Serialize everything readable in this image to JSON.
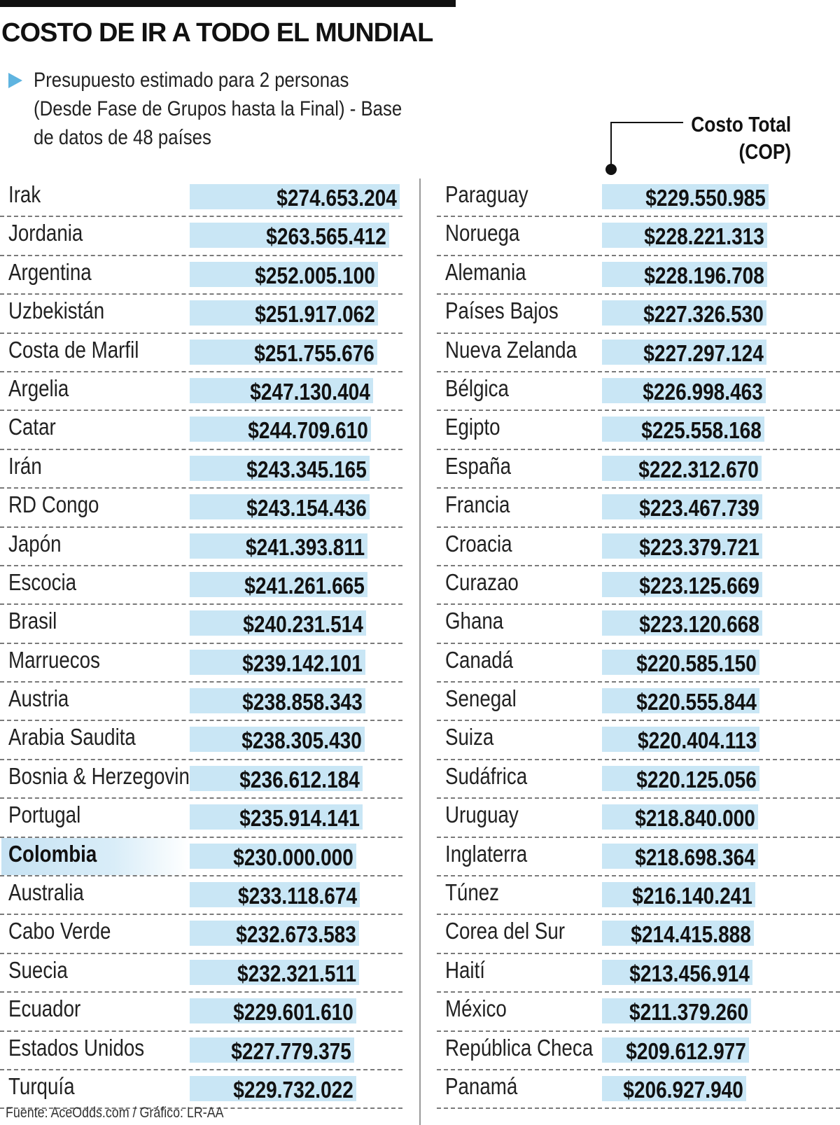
{
  "header": {
    "title": "COSTO DE IR A TODO EL MUNDIAL",
    "subtitle": "Presupuesto estimado para 2 personas (Desde Fase de Grupos hasta la Final) - Base de datos de 48 países",
    "column_label_line1": "Costo Total",
    "column_label_line2": "(COP)"
  },
  "footer": {
    "source": "Fuente: AceOdds.com / Gráfico: LR-AA"
  },
  "colors": {
    "bar": "#c9e6f5",
    "accent": "#5fb4e0",
    "highlight": "#c6e2f3"
  },
  "chart_data": {
    "type": "table",
    "title": "COSTO DE IR A TODO EL MUNDIAL",
    "value_label": "Costo Total (COP)",
    "highlighted": "Colombia",
    "left_column": [
      {
        "country": "Irak",
        "value": 274653204,
        "label": "$274.653.204"
      },
      {
        "country": "Jordania",
        "value": 263565412,
        "label": "$263.565.412"
      },
      {
        "country": "Argentina",
        "value": 252005100,
        "label": "$252.005.100"
      },
      {
        "country": "Uzbekistán",
        "value": 251917062,
        "label": "$251.917.062"
      },
      {
        "country": "Costa de Marfil",
        "value": 251755676,
        "label": "$251.755.676"
      },
      {
        "country": "Argelia",
        "value": 247130404,
        "label": "$247.130.404"
      },
      {
        "country": "Catar",
        "value": 244709610,
        "label": "$244.709.610"
      },
      {
        "country": "Irán",
        "value": 243345165,
        "label": "$243.345.165"
      },
      {
        "country": "RD Congo",
        "value": 243154436,
        "label": "$243.154.436"
      },
      {
        "country": "Japón",
        "value": 241393811,
        "label": "$241.393.811"
      },
      {
        "country": "Escocia",
        "value": 241261665,
        "label": "$241.261.665"
      },
      {
        "country": "Brasil",
        "value": 240231514,
        "label": "$240.231.514"
      },
      {
        "country": "Marruecos",
        "value": 239142101,
        "label": "$239.142.101"
      },
      {
        "country": "Austria",
        "value": 238858343,
        "label": "$238.858.343"
      },
      {
        "country": "Arabia Saudita",
        "value": 238305430,
        "label": "$238.305.430"
      },
      {
        "country": "Bosnia & Herzegovina",
        "value": 236612184,
        "label": "$236.612.184"
      },
      {
        "country": "Portugal",
        "value": 235914141,
        "label": "$235.914.141"
      },
      {
        "country": "Colombia",
        "value": 230000000,
        "label": "$230.000.000"
      },
      {
        "country": "Australia",
        "value": 233118674,
        "label": "$233.118.674"
      },
      {
        "country": "Cabo Verde",
        "value": 232673583,
        "label": "$232.673.583"
      },
      {
        "country": "Suecia",
        "value": 232321511,
        "label": "$232.321.511"
      },
      {
        "country": "Ecuador",
        "value": 229601610,
        "label": "$229.601.610"
      },
      {
        "country": "Estados Unidos",
        "value": 227779375,
        "label": "$227.779.375"
      },
      {
        "country": "Turquía",
        "value": 229732022,
        "label": "$229.732.022"
      }
    ],
    "right_column": [
      {
        "country": "Paraguay",
        "value": 229550985,
        "label": "$229.550.985"
      },
      {
        "country": "Noruega",
        "value": 228221313,
        "label": "$228.221.313"
      },
      {
        "country": "Alemania",
        "value": 228196708,
        "label": "$228.196.708"
      },
      {
        "country": "Países Bajos",
        "value": 227326530,
        "label": "$227.326.530"
      },
      {
        "country": "Nueva Zelanda",
        "value": 227297124,
        "label": "$227.297.124"
      },
      {
        "country": "Bélgica",
        "value": 226998463,
        "label": "$226.998.463"
      },
      {
        "country": "Egipto",
        "value": 225558168,
        "label": "$225.558.168"
      },
      {
        "country": "España",
        "value": 222312670,
        "label": "$222.312.670"
      },
      {
        "country": "Francia",
        "value": 223467739,
        "label": "$223.467.739"
      },
      {
        "country": "Croacia",
        "value": 223379721,
        "label": "$223.379.721"
      },
      {
        "country": "Curazao",
        "value": 223125669,
        "label": "$223.125.669"
      },
      {
        "country": "Ghana",
        "value": 223120668,
        "label": "$223.120.668"
      },
      {
        "country": "Canadá",
        "value": 220585150,
        "label": "$220.585.150"
      },
      {
        "country": "Senegal",
        "value": 220555844,
        "label": "$220.555.844"
      },
      {
        "country": "Suiza",
        "value": 220404113,
        "label": "$220.404.113"
      },
      {
        "country": "Sudáfrica",
        "value": 220125056,
        "label": "$220.125.056"
      },
      {
        "country": "Uruguay",
        "value": 218840000,
        "label": "$218.840.000"
      },
      {
        "country": "Inglaterra",
        "value": 218698364,
        "label": "$218.698.364"
      },
      {
        "country": "Túnez",
        "value": 216140241,
        "label": "$216.140.241"
      },
      {
        "country": "Corea del Sur",
        "value": 214415888,
        "label": "$214.415.888"
      },
      {
        "country": "Haití",
        "value": 213456914,
        "label": "$213.456.914"
      },
      {
        "country": "México",
        "value": 211379260,
        "label": "$211.379.260"
      },
      {
        "country": "República Checa",
        "value": 209612977,
        "label": "$209.612.977"
      },
      {
        "country": "Panamá",
        "value": 206927940,
        "label": "$206.927.940"
      }
    ]
  }
}
